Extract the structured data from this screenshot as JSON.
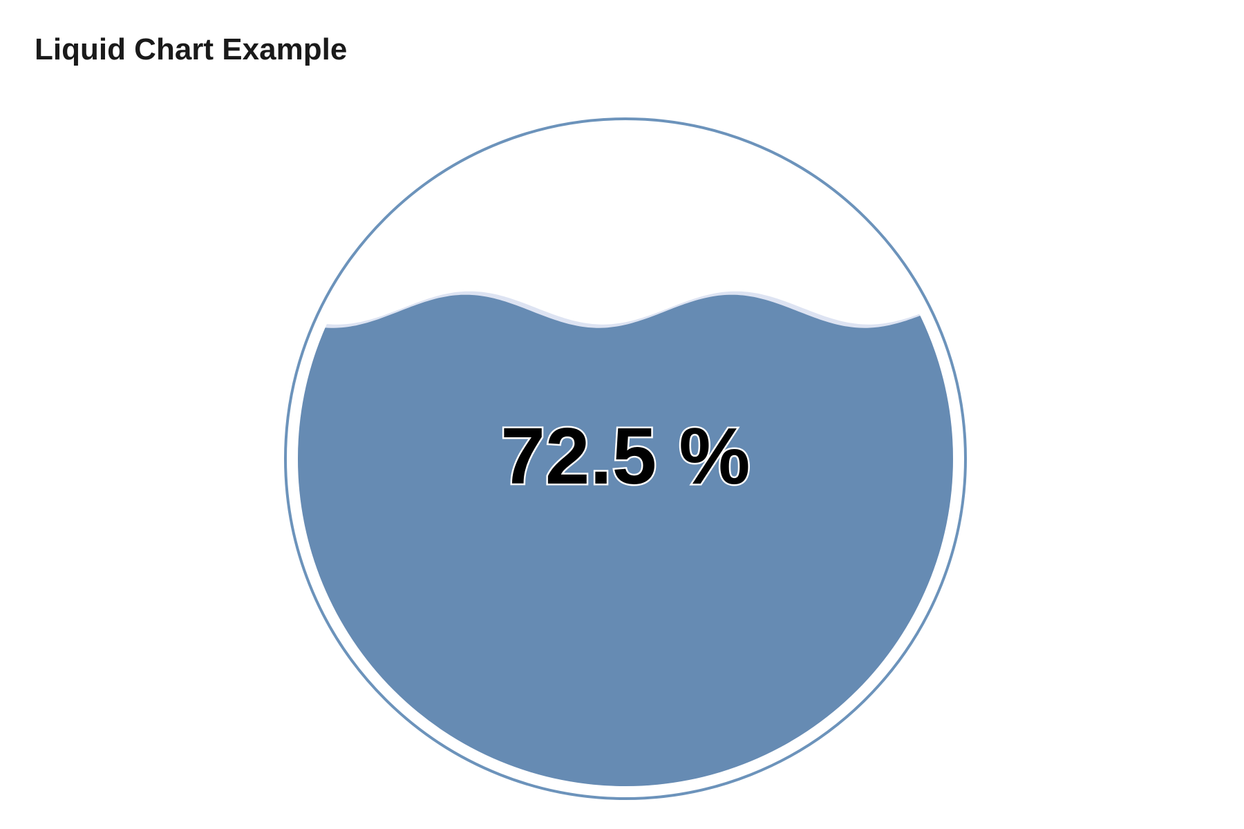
{
  "chart_data": {
    "type": "liquid",
    "title": "Liquid Chart Example",
    "value": 0.725,
    "label": "72.5 %",
    "colors": {
      "liquid": "#668bb3",
      "outline": "#6c93bb",
      "wave_highlight": "#dde3f2",
      "label_fill": "#000000",
      "label_stroke": "#ffffff"
    }
  }
}
